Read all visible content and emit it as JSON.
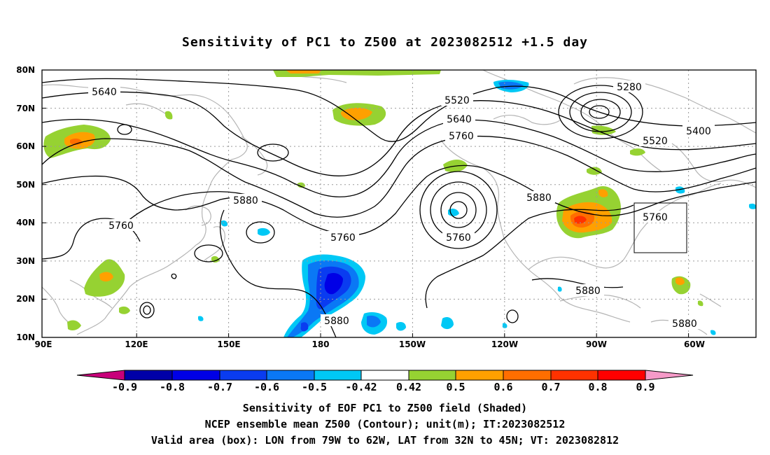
{
  "title": "Sensitivity of PC1 to Z500 at 2023082512 +1.5 day",
  "map": {
    "lon_labels": [
      "90E",
      "120E",
      "150E",
      "180",
      "150W",
      "120W",
      "90W",
      "60W"
    ],
    "lat_labels": [
      "80N",
      "70N",
      "60N",
      "50N",
      "40N",
      "30N",
      "20N",
      "10N"
    ],
    "contour_labels": [
      "5640",
      "5520",
      "5280",
      "5640",
      "5760",
      "5400",
      "5520",
      "5880",
      "5760",
      "5760",
      "5760",
      "5880",
      "5760",
      "5880",
      "5880",
      "5880"
    ],
    "colors": {
      "coast": "#b4b4b4",
      "grid": "#9a9a9a",
      "contour": "#000000"
    }
  },
  "colorbar": {
    "labels": [
      "-0.9",
      "-0.8",
      "-0.7",
      "-0.6",
      "-0.5",
      "-0.42",
      "0.42",
      "0.5",
      "0.6",
      "0.7",
      "0.8",
      "0.9"
    ],
    "colors": [
      "#c8007a",
      "#0000a8",
      "#0000e6",
      "#0a3cf0",
      "#0a78f5",
      "#00c8f5",
      "#ffffff",
      "#96d232",
      "#ffa000",
      "#ff6e00",
      "#ff3200",
      "#ff0000",
      "#f59ac8"
    ]
  },
  "captions": [
    "Sensitivity of EOF PC1 to Z500 field (Shaded)",
    "NCEP ensemble mean Z500 (Contour); unit(m); IT:2023082512",
    "Valid area (box): LON from 79W to 62W, LAT from 32N to 45N; VT: 2023082812"
  ]
}
